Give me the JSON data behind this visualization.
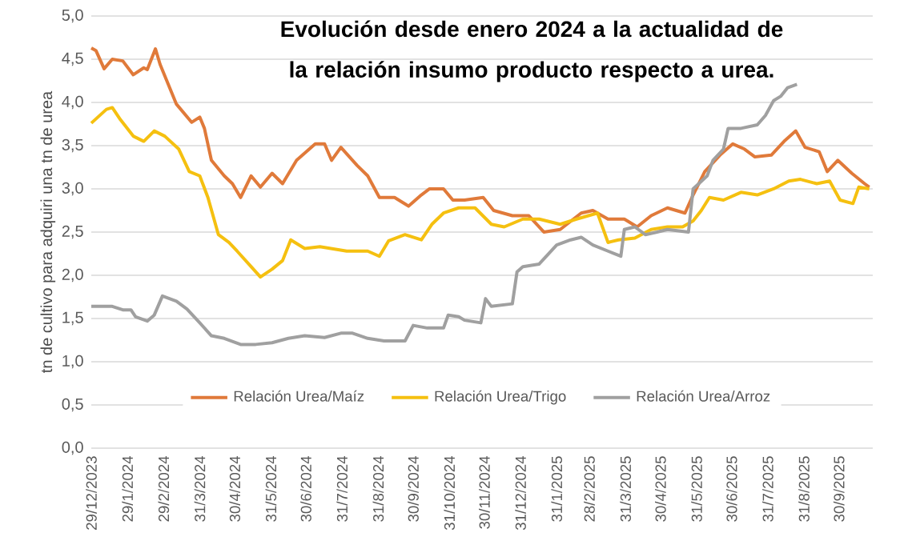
{
  "chart_data": {
    "type": "line",
    "title": "Evolución desde enero 2024 a la actualidad de la relación insumo producto respecto a urea.",
    "ylabel": "tn de cultivo para adquiri una tn de urea",
    "xlim": [
      "2023-12-29",
      "2025-10-29"
    ],
    "xticks": [
      {
        "value": "2023-12-29",
        "label": "29/12/2023"
      },
      {
        "value": "2024-01-29",
        "label": "29/1/2024"
      },
      {
        "value": "2024-02-29",
        "label": "29/2/2024"
      },
      {
        "value": "2024-03-31",
        "label": "31/3/2024"
      },
      {
        "value": "2024-04-30",
        "label": "30/4/2024"
      },
      {
        "value": "2024-05-31",
        "label": "31/5/2024"
      },
      {
        "value": "2024-06-30",
        "label": "30/6/2024"
      },
      {
        "value": "2024-07-31",
        "label": "31/7/2024"
      },
      {
        "value": "2024-08-31",
        "label": "31/8/2024"
      },
      {
        "value": "2024-09-30",
        "label": "30/9/2024"
      },
      {
        "value": "2024-10-31",
        "label": "31/10/2024"
      },
      {
        "value": "2024-11-30",
        "label": "30/11/2024"
      },
      {
        "value": "2024-12-31",
        "label": "31/12/2024"
      },
      {
        "value": "2025-01-31",
        "label": "31/1/2025"
      },
      {
        "value": "2025-02-28",
        "label": "28/2/2025"
      },
      {
        "value": "2025-03-31",
        "label": "31/3/2025"
      },
      {
        "value": "2025-04-30",
        "label": "30/4/2025"
      },
      {
        "value": "2025-05-31",
        "label": "31/5/2025"
      },
      {
        "value": "2025-06-30",
        "label": "30/6/2025"
      },
      {
        "value": "2025-07-31",
        "label": "31/7/2025"
      },
      {
        "value": "2025-08-31",
        "label": "31/8/2025"
      },
      {
        "value": "2025-09-30",
        "label": "30/9/2025"
      }
    ],
    "ylim": [
      0,
      5
    ],
    "yticks": [
      {
        "value": 0,
        "label": "0,0"
      },
      {
        "value": 0.5,
        "label": "0,5"
      },
      {
        "value": 1,
        "label": "1,0"
      },
      {
        "value": 1.5,
        "label": "1,5"
      },
      {
        "value": 2,
        "label": "2,0"
      },
      {
        "value": 2.5,
        "label": "2,5"
      },
      {
        "value": 3,
        "label": "3,0"
      },
      {
        "value": 3.5,
        "label": "3,5"
      },
      {
        "value": 4,
        "label": "4,0"
      },
      {
        "value": 4.5,
        "label": "4,5"
      },
      {
        "value": 5,
        "label": "5,0"
      }
    ],
    "grid": "y",
    "legend": "bottom",
    "marker": "none",
    "line_style": "solid",
    "series": [
      {
        "name": "Relación Urea/Maíz",
        "color": "#e07a3a",
        "x": [
          "2023-12-29",
          "2024-01-02",
          "2024-01-09",
          "2024-01-16",
          "2024-01-25",
          "2024-02-03",
          "2024-02-12",
          "2024-02-15",
          "2024-02-22",
          "2024-02-26",
          "2024-03-11",
          "2024-03-24",
          "2024-03-31",
          "2024-04-04",
          "2024-04-10",
          "2024-04-21",
          "2024-04-28",
          "2024-05-05",
          "2024-05-14",
          "2024-05-22",
          "2024-06-01",
          "2024-06-10",
          "2024-06-22",
          "2024-07-08",
          "2024-07-16",
          "2024-07-22",
          "2024-07-30",
          "2024-08-13",
          "2024-08-22",
          "2024-09-01",
          "2024-09-14",
          "2024-09-26",
          "2024-10-07",
          "2024-10-14",
          "2024-10-26",
          "2024-11-03",
          "2024-11-13",
          "2024-11-29",
          "2024-12-08",
          "2024-12-24",
          "2025-01-07",
          "2025-01-20",
          "2025-02-03",
          "2025-02-21",
          "2025-03-03",
          "2025-03-16",
          "2025-03-30",
          "2025-04-10",
          "2025-04-22",
          "2025-05-06",
          "2025-05-21",
          "2025-05-28",
          "2025-06-07",
          "2025-06-20",
          "2025-07-01",
          "2025-07-11",
          "2025-07-20",
          "2025-08-03",
          "2025-08-14",
          "2025-08-24",
          "2025-09-01",
          "2025-09-13",
          "2025-09-20",
          "2025-09-29",
          "2025-10-11",
          "2025-10-22",
          "2025-10-26"
        ],
        "values": [
          4.63,
          4.6,
          4.39,
          4.5,
          4.48,
          4.32,
          4.4,
          4.38,
          4.62,
          4.44,
          3.98,
          3.77,
          3.83,
          3.7,
          3.33,
          3.15,
          3.06,
          2.9,
          3.15,
          3.02,
          3.18,
          3.06,
          3.33,
          3.52,
          3.52,
          3.33,
          3.48,
          3.27,
          3.15,
          2.9,
          2.9,
          2.8,
          2.93,
          3.0,
          3.0,
          2.87,
          2.87,
          2.9,
          2.75,
          2.69,
          2.69,
          2.5,
          2.53,
          2.72,
          2.75,
          2.65,
          2.65,
          2.56,
          2.69,
          2.78,
          2.72,
          2.93,
          3.2,
          3.39,
          3.52,
          3.46,
          3.37,
          3.39,
          3.55,
          3.67,
          3.48,
          3.43,
          3.2,
          3.33,
          3.18,
          3.06,
          3.02
        ]
      },
      {
        "name": "Relación Urea/Trigo",
        "color": "#f5c010",
        "x": [
          "2023-12-29",
          "2024-01-11",
          "2024-01-16",
          "2024-01-23",
          "2024-02-03",
          "2024-02-12",
          "2024-02-21",
          "2024-03-01",
          "2024-03-13",
          "2024-03-22",
          "2024-03-31",
          "2024-04-07",
          "2024-04-16",
          "2024-04-25",
          "2024-05-02",
          "2024-05-14",
          "2024-05-22",
          "2024-06-01",
          "2024-06-10",
          "2024-06-17",
          "2024-06-29",
          "2024-07-12",
          "2024-08-04",
          "2024-08-22",
          "2024-09-01",
          "2024-09-09",
          "2024-09-23",
          "2024-10-07",
          "2024-10-16",
          "2024-10-26",
          "2024-11-08",
          "2024-11-22",
          "2024-12-06",
          "2024-12-17",
          "2025-01-02",
          "2025-01-16",
          "2025-02-03",
          "2025-02-17",
          "2025-03-07",
          "2025-03-16",
          "2025-03-25",
          "2025-04-08",
          "2025-04-22",
          "2025-05-06",
          "2025-05-19",
          "2025-05-28",
          "2025-06-04",
          "2025-06-11",
          "2025-06-23",
          "2025-07-08",
          "2025-07-22",
          "2025-08-05",
          "2025-08-18",
          "2025-08-28",
          "2025-09-11",
          "2025-09-22",
          "2025-10-01",
          "2025-10-12",
          "2025-10-17",
          "2025-10-26"
        ],
        "values": [
          3.76,
          3.92,
          3.94,
          3.8,
          3.61,
          3.55,
          3.67,
          3.61,
          3.46,
          3.2,
          3.15,
          2.9,
          2.47,
          2.38,
          2.28,
          2.1,
          1.98,
          2.07,
          2.17,
          2.41,
          2.31,
          2.33,
          2.28,
          2.28,
          2.22,
          2.4,
          2.47,
          2.41,
          2.59,
          2.72,
          2.78,
          2.78,
          2.59,
          2.56,
          2.65,
          2.65,
          2.59,
          2.65,
          2.72,
          2.38,
          2.41,
          2.43,
          2.53,
          2.56,
          2.56,
          2.63,
          2.75,
          2.9,
          2.87,
          2.96,
          2.93,
          3.0,
          3.09,
          3.11,
          3.06,
          3.09,
          2.87,
          2.83,
          3.02,
          3.0
        ]
      },
      {
        "name": "Relación Urea/Arroz",
        "color": "#a0a0a0",
        "x": [
          "2023-12-29",
          "2024-01-16",
          "2024-01-25",
          "2024-02-01",
          "2024-02-05",
          "2024-02-15",
          "2024-02-21",
          "2024-02-28",
          "2024-03-11",
          "2024-03-20",
          "2024-03-31",
          "2024-04-10",
          "2024-04-21",
          "2024-05-05",
          "2024-05-18",
          "2024-06-01",
          "2024-06-15",
          "2024-06-29",
          "2024-07-16",
          "2024-07-30",
          "2024-08-09",
          "2024-08-22",
          "2024-09-05",
          "2024-09-23",
          "2024-09-30",
          "2024-10-12",
          "2024-10-26",
          "2024-10-30",
          "2024-11-08",
          "2024-11-13",
          "2024-11-27",
          "2024-12-01",
          "2024-12-06",
          "2024-12-24",
          "2024-12-28",
          "2025-01-02",
          "2025-01-16",
          "2025-01-31",
          "2025-02-12",
          "2025-02-21",
          "2025-03-03",
          "2025-03-16",
          "2025-03-27",
          "2025-03-30",
          "2025-04-08",
          "2025-04-17",
          "2025-04-27",
          "2025-05-06",
          "2025-05-24",
          "2025-05-28",
          "2025-06-09",
          "2025-06-14",
          "2025-06-23",
          "2025-06-27",
          "2025-07-08",
          "2025-07-22",
          "2025-07-29",
          "2025-08-05",
          "2025-08-11",
          "2025-08-17",
          "2025-08-25"
        ],
        "values": [
          1.64,
          1.64,
          1.6,
          1.6,
          1.52,
          1.47,
          1.54,
          1.76,
          1.7,
          1.61,
          1.45,
          1.3,
          1.27,
          1.2,
          1.2,
          1.22,
          1.27,
          1.3,
          1.28,
          1.33,
          1.33,
          1.27,
          1.24,
          1.24,
          1.42,
          1.39,
          1.39,
          1.54,
          1.52,
          1.48,
          1.45,
          1.73,
          1.64,
          1.67,
          2.04,
          2.1,
          2.13,
          2.35,
          2.41,
          2.44,
          2.35,
          2.28,
          2.22,
          2.53,
          2.56,
          2.47,
          2.5,
          2.53,
          2.5,
          3.0,
          3.15,
          3.33,
          3.46,
          3.7,
          3.7,
          3.74,
          3.85,
          4.02,
          4.07,
          4.17,
          4.21
        ]
      }
    ]
  }
}
